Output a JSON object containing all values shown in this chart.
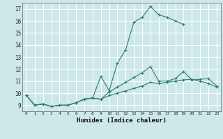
{
  "title": "",
  "xlabel": "Humidex (Indice chaleur)",
  "ylabel": "",
  "bg_color": "#cce8e8",
  "grid_color": "#ffffff",
  "line_color": "#2e7d6e",
  "xlim": [
    -0.5,
    23.5
  ],
  "ylim": [
    8.5,
    17.5
  ],
  "xticks": [
    0,
    1,
    2,
    3,
    4,
    5,
    6,
    7,
    8,
    9,
    10,
    11,
    12,
    13,
    14,
    15,
    16,
    17,
    18,
    19,
    20,
    21,
    22,
    23
  ],
  "yticks": [
    9,
    10,
    11,
    12,
    13,
    14,
    15,
    16,
    17
  ],
  "series": [
    {
      "x": [
        0,
        1,
        2,
        3,
        4,
        5,
        6,
        7,
        8,
        9,
        10,
        11,
        12,
        13,
        14,
        15,
        16,
        17,
        18,
        19
      ],
      "y": [
        9.8,
        9.0,
        9.1,
        8.9,
        9.0,
        9.0,
        9.2,
        9.5,
        9.6,
        11.4,
        10.2,
        12.5,
        13.6,
        15.9,
        16.3,
        17.2,
        16.5,
        16.3,
        16.0,
        15.7
      ]
    },
    {
      "x": [
        0,
        1,
        2,
        3,
        4,
        5,
        6,
        7,
        8,
        9,
        10,
        11,
        12,
        13,
        14,
        15,
        16,
        17,
        18,
        19,
        20,
        21,
        22,
        23
      ],
      "y": [
        9.8,
        9.0,
        9.1,
        8.9,
        9.0,
        9.0,
        9.2,
        9.5,
        9.6,
        9.5,
        10.1,
        10.5,
        10.9,
        11.3,
        11.7,
        12.2,
        11.0,
        11.0,
        11.2,
        11.8,
        11.1,
        11.15,
        11.2,
        10.6
      ]
    },
    {
      "x": [
        0,
        1,
        2,
        3,
        4,
        5,
        6,
        7,
        8,
        9,
        10,
        11,
        12,
        13,
        14,
        15,
        16,
        17,
        18,
        19,
        20,
        21,
        22,
        23
      ],
      "y": [
        9.8,
        9.0,
        9.1,
        8.9,
        9.0,
        9.0,
        9.2,
        9.5,
        9.6,
        9.5,
        9.8,
        10.0,
        10.2,
        10.4,
        10.6,
        10.9,
        10.8,
        10.9,
        11.0,
        11.1,
        11.15,
        11.0,
        10.8,
        10.5
      ]
    }
  ]
}
